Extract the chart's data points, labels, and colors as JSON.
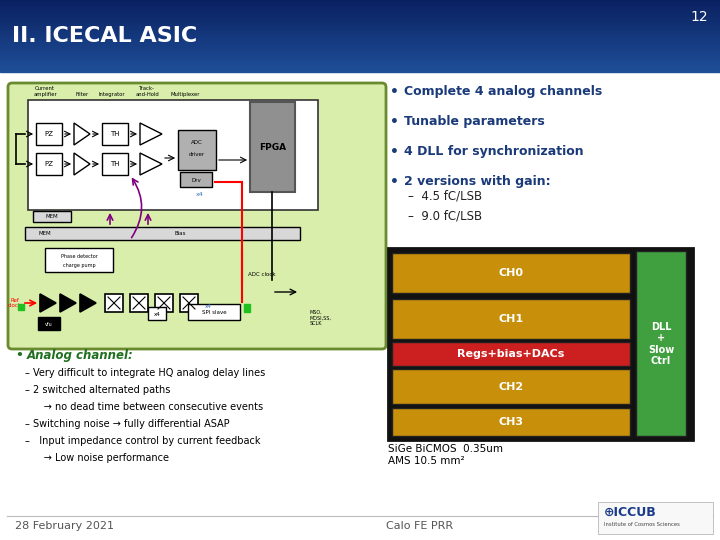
{
  "slide_num": "12",
  "title": "II. ICECAL ASIC",
  "bg_color": "#f0f0f0",
  "header_top_color": "#0a2060",
  "header_bot_color": "#1a5090",
  "bullet_color": "#1a3a7a",
  "bullet_points": [
    "Complete 4 analog channels",
    "Tunable parameters",
    "4 DLL for synchronization",
    "2 versions with gain:"
  ],
  "sub_bullets": [
    "–  4.5 fC/LSB",
    "–  9.0 fC/LSB"
  ],
  "analog_channel_title": "Analog channel:",
  "analog_channel_color": "#207020",
  "analog_bullets": [
    "– Very difficult to integrate HQ analog delay lines",
    "– 2 switched alternated paths",
    "      → no dead time between consecutive events",
    "– Switching noise → fully differential ASAP",
    "–   Input impedance control by current feedback",
    "      → Low noise performance"
  ],
  "footer_left": "28 February 2021",
  "footer_right": "Calo FE PRR",
  "chip_caption": "SiGe BiCMOS  0.35um\nAMS 10.5 mm²",
  "diagram_bg": "#d8eeaa",
  "diagram_border": "#6a8a30",
  "dll_label": "DLL\n+\nSlow\nCtrl",
  "ch_labels": [
    "CH0",
    "CH1",
    "Regs+bias+DACs",
    "CH2",
    "CH3"
  ],
  "ch_colors": [
    "#c8900a",
    "#c8900a",
    "#cc2020",
    "#c8900a",
    "#c8900a"
  ],
  "dll_color": "#40a040",
  "fpga_color": "#909090",
  "adc_color": "#b0b0b0",
  "mem_color": "#d8d8d8"
}
